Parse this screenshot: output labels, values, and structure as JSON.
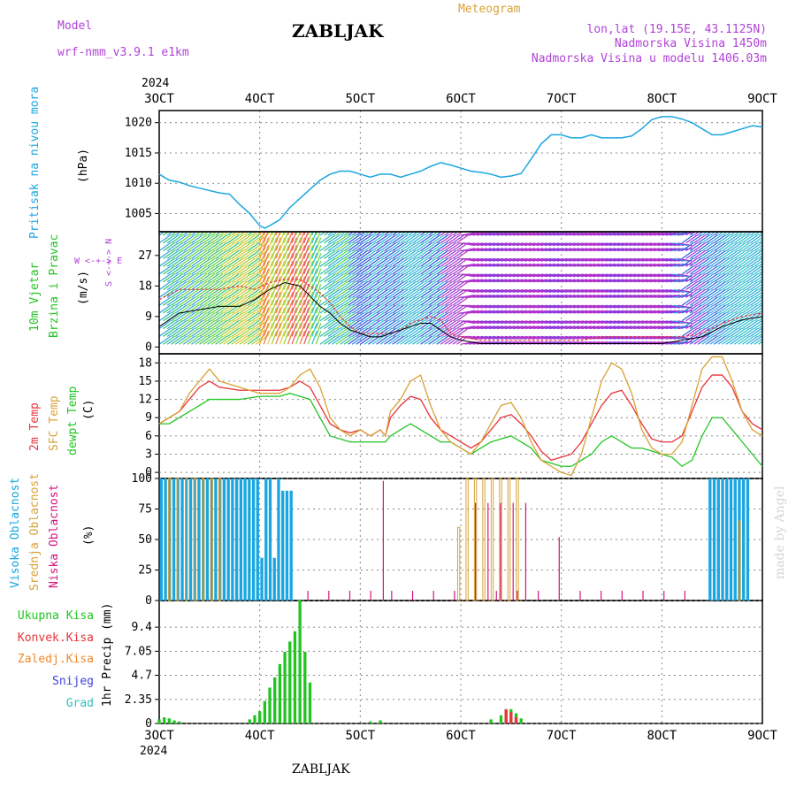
{
  "header": {
    "model_label": "Model",
    "model_name": "wrf-nmm_v3.9.1 e1km",
    "station": "ZABLJAK",
    "meteogram": "Meteogram",
    "lonlat": "lon,lat (19.15E, 43.1125N)",
    "altitude": "Nadmorska Visina 1450m",
    "model_altitude": "Nadmorska Visina u modelu 1406.03m",
    "year_top": "2024",
    "year_bottom": "2024",
    "footer": "ZABLJAK",
    "watermark": "made by Angel"
  },
  "time_axis": {
    "labels": [
      "3OCT",
      "4OCT",
      "5OCT",
      "6OCT",
      "7OCT",
      "8OCT",
      "9OCT"
    ],
    "start_day": 3,
    "end_day": 9
  },
  "colors": {
    "pressure": "#1aa6e0",
    "temp2m": "#e8343a",
    "sfc": "#d9a236",
    "dewpt": "#22c422",
    "high_cloud": "#1aa6e0",
    "mid_cloud": "#d9a236",
    "low_cloud": "#d3137d",
    "precip": "#22c422",
    "conv": "#e8343a",
    "frozen": "#f08a2a",
    "snow": "#4040e0",
    "hail": "#30c0c0",
    "purple": "#b043d8"
  },
  "panels": {
    "pressure": {
      "l1": "Pritisak na nivou mora",
      "unit": "(hPa)",
      "ticks": [
        "1005",
        "1010",
        "1015",
        "1020"
      ]
    },
    "wind": {
      "l1": "10m Vjetar",
      "l2": "Brzina i Pravac",
      "unit": "(m/s)",
      "ticks": [
        "0",
        "9",
        "18",
        "27"
      ],
      "compass": "W <-+-> E",
      "compass_v": "S <-+-> N"
    },
    "temp": {
      "l1": "2m Temp",
      "l2": "SFC Temp",
      "l3": "dewpt Temp",
      "unit": "(C)",
      "ticks": [
        "0",
        "3",
        "6",
        "9",
        "12",
        "15",
        "18"
      ]
    },
    "cloud": {
      "l1": "Visoka Oblacnost",
      "l2": "Srednja Oblacnost",
      "l3": "Niska Oblacnost",
      "unit": "(%)",
      "ticks": [
        "0",
        "25",
        "50",
        "75",
        "100"
      ]
    },
    "precip": {
      "l1": "Ukupna Kisa",
      "l2": "Konvek.Kisa",
      "l3": "Zaledj.Kisa",
      "l4": "Snijeg",
      "l5": "Grad",
      "unit": "1hr Precip (mm)",
      "ticks": [
        "0",
        "2.35",
        "4.7",
        "7.05",
        "9.4"
      ]
    }
  },
  "chart_data": [
    {
      "type": "line",
      "ylabel": "Pritisak na nivou mora (hPa)",
      "ylim": [
        1002,
        1022
      ],
      "x_days": [
        3.0,
        3.1,
        3.2,
        3.3,
        3.4,
        3.5,
        3.6,
        3.7,
        3.8,
        3.9,
        3.95,
        4.0,
        4.05,
        4.1,
        4.2,
        4.3,
        4.4,
        4.5,
        4.6,
        4.7,
        4.8,
        4.9,
        5.0,
        5.1,
        5.2,
        5.3,
        5.4,
        5.5,
        5.6,
        5.7,
        5.8,
        5.9,
        6.0,
        6.1,
        6.2,
        6.3,
        6.4,
        6.5,
        6.6,
        6.7,
        6.8,
        6.9,
        7.0,
        7.1,
        7.2,
        7.3,
        7.4,
        7.5,
        7.6,
        7.7,
        7.8,
        7.9,
        8.0,
        8.1,
        8.2,
        8.3,
        8.4,
        8.5,
        8.6,
        8.7,
        8.8,
        8.9,
        9.0
      ],
      "series": [
        {
          "values": [
            1011.5,
            1010.5,
            1010.2,
            1009.6,
            1009.2,
            1008.8,
            1008.4,
            1008.2,
            1006.5,
            1005,
            1004,
            1003,
            1002.6,
            1003,
            1004,
            1006,
            1007.5,
            1009,
            1010.5,
            1011.5,
            1012,
            1012,
            1011.5,
            1011,
            1011.5,
            1011.5,
            1011,
            1011.5,
            1012,
            1012.8,
            1013.4,
            1013,
            1012.5,
            1012,
            1011.8,
            1011.5,
            1011,
            1011.2,
            1011.6,
            1014,
            1016.5,
            1018,
            1018,
            1017.5,
            1017.5,
            1018,
            1017.5,
            1017.5,
            1017.5,
            1017.8,
            1019,
            1020.5,
            1021,
            1021,
            1020.6,
            1020,
            1019,
            1018,
            1018,
            1018.5,
            1019,
            1019.5,
            1019.3
          ]
        }
      ]
    },
    {
      "type": "line",
      "ylabel": "10m Vjetar Brzina i Pravac (m/s)",
      "ylim": [
        -2,
        34
      ],
      "x_days": [
        3.0,
        3.2,
        3.4,
        3.6,
        3.8,
        3.95,
        4.1,
        4.25,
        4.4,
        4.5,
        4.6,
        4.7,
        4.8,
        4.9,
        5.0,
        5.1,
        5.2,
        5.3,
        5.4,
        5.5,
        5.6,
        5.7,
        5.8,
        5.9,
        6.0,
        6.2,
        6.4,
        6.6,
        6.8,
        7.0,
        7.2,
        7.4,
        7.6,
        7.8,
        8.0,
        8.2,
        8.4,
        8.6,
        8.8,
        9.0
      ],
      "series": [
        {
          "values": [
            6,
            10,
            11,
            12,
            12,
            14,
            17,
            19,
            18,
            15,
            12,
            10,
            7,
            5,
            4,
            3,
            3,
            4,
            5,
            6,
            7,
            7,
            5,
            3,
            2,
            1,
            1,
            1,
            1,
            1,
            1,
            1,
            1,
            1,
            1,
            2,
            3,
            6,
            8,
            9
          ]
        },
        {
          "values": [
            14,
            17,
            17,
            17,
            18,
            17,
            19,
            20,
            20,
            18,
            16,
            13,
            9,
            6,
            4,
            4,
            4,
            4,
            5,
            7,
            8,
            9,
            8,
            4,
            3,
            2,
            2,
            2,
            2,
            2,
            2,
            3,
            3,
            3,
            3,
            3,
            4,
            7,
            9,
            10
          ]
        }
      ]
    },
    {
      "type": "line",
      "ylabel": "2m Temp / SFC Temp / dewpt Temp (C)",
      "ylim": [
        -1,
        19.5
      ],
      "x_days": [
        3.0,
        3.1,
        3.2,
        3.3,
        3.4,
        3.5,
        3.6,
        3.8,
        4.0,
        4.2,
        4.3,
        4.4,
        4.5,
        4.6,
        4.7,
        4.8,
        4.9,
        5.0,
        5.1,
        5.2,
        5.25,
        5.3,
        5.4,
        5.5,
        5.6,
        5.7,
        5.8,
        5.9,
        6.0,
        6.1,
        6.2,
        6.3,
        6.4,
        6.5,
        6.6,
        6.7,
        6.8,
        6.9,
        7.0,
        7.1,
        7.2,
        7.3,
        7.4,
        7.5,
        7.6,
        7.7,
        7.8,
        7.9,
        8.0,
        8.1,
        8.2,
        8.3,
        8.4,
        8.5,
        8.6,
        8.7,
        8.8,
        8.9,
        9.0
      ],
      "series": [
        {
          "values": [
            8,
            9,
            10,
            12,
            14,
            15,
            14,
            13.5,
            13.5,
            13.5,
            14,
            15,
            14,
            11,
            8,
            7,
            6.5,
            7,
            6,
            7,
            6,
            9,
            11,
            12.5,
            12,
            9,
            7,
            6,
            5,
            4,
            5,
            7,
            9,
            9.5,
            8,
            6,
            3.5,
            2,
            2.5,
            3,
            5,
            8,
            11,
            13,
            13.5,
            11,
            8,
            5.5,
            5,
            5,
            6,
            10,
            14,
            16,
            16,
            14,
            10,
            8,
            7
          ]
        },
        {
          "values": [
            8,
            9,
            10,
            13,
            15,
            17,
            15,
            14,
            13,
            13,
            14,
            16,
            17,
            14,
            9,
            7,
            6,
            7,
            6,
            7,
            6,
            10,
            12,
            15,
            16,
            11,
            7,
            5,
            4,
            3,
            5,
            8,
            11,
            11.5,
            9,
            5,
            2,
            1,
            0,
            -0.5,
            3,
            9,
            15,
            18,
            17,
            13,
            7,
            4,
            3,
            3,
            5,
            11,
            17,
            19,
            19,
            15,
            10,
            7,
            6
          ]
        },
        {
          "values": [
            8,
            8,
            9,
            10,
            11,
            12,
            12,
            12,
            12.5,
            12.5,
            13,
            12.5,
            12,
            9,
            6,
            5.5,
            5,
            5,
            5,
            5,
            5,
            6,
            7,
            8,
            7,
            6,
            5,
            5,
            4,
            3,
            4,
            5,
            5.5,
            6,
            5,
            4,
            2,
            1.5,
            1,
            1,
            2,
            3,
            5,
            6,
            5,
            4,
            4,
            3.5,
            3,
            2.5,
            1,
            2,
            6,
            9,
            9,
            7,
            5,
            3,
            1
          ]
        }
      ]
    },
    {
      "type": "bar",
      "ylabel": "Visoka / Srednja / Niska Oblacnost (%)",
      "ylim": [
        0,
        100
      ],
      "series": [
        {
          "name": "Visoka Oblacnost",
          "values": []
        },
        {
          "name": "Srednja Oblacnost",
          "values": []
        },
        {
          "name": "Niska Oblacnost",
          "values": []
        }
      ]
    },
    {
      "type": "bar",
      "ylabel": "1hr Precip (mm)",
      "ylim": [
        0,
        12
      ],
      "x_days": [
        3.0,
        3.05,
        3.1,
        3.15,
        3.2,
        3.9,
        3.95,
        4.0,
        4.05,
        4.1,
        4.15,
        4.2,
        4.25,
        4.3,
        4.35,
        4.4,
        4.45,
        4.5,
        5.1,
        5.2,
        6.3,
        6.4,
        6.45,
        6.5,
        6.55,
        6.6
      ],
      "series": [
        {
          "name": "Ukupna Kisa",
          "values": [
            0.4,
            0.6,
            0.5,
            0.3,
            0.2,
            0.4,
            0.8,
            1.2,
            2.2,
            3.5,
            4.5,
            5.8,
            7,
            8,
            9,
            12.1,
            7,
            4,
            0.2,
            0.3,
            0.4,
            0.8,
            1.2,
            1.4,
            1.0,
            0.5
          ]
        }
      ]
    }
  ]
}
